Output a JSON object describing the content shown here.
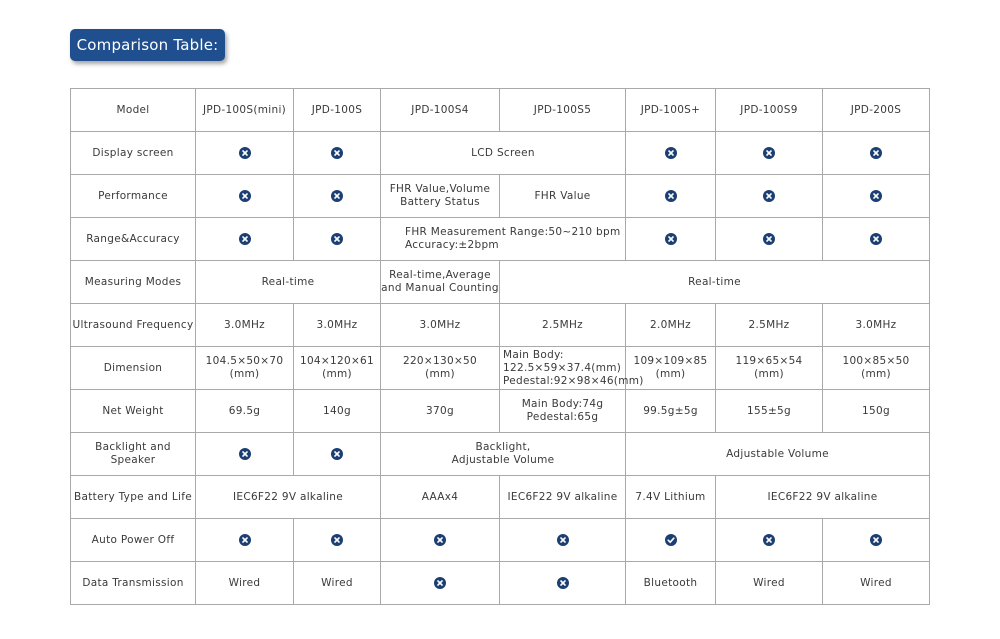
{
  "title": "Comparison Table:",
  "header": [
    "Model",
    "JPD-100S(mini)",
    "JPD-100S",
    "JPD-100S4",
    "JPD-100S5",
    "JPD-100S+",
    "JPD-100S9",
    "JPD-200S"
  ],
  "rows": [
    {
      "label": "Display screen",
      "texts": [
        "LCD Screen"
      ]
    },
    {
      "label": "Performance",
      "texts": [
        "FHR Value,Volume\nBattery Status",
        "FHR Value"
      ]
    },
    {
      "label": "Range&Accuracy",
      "texts": [
        "FHR Measurement Range:50~210 bpm\nAccuracy:±2bpm"
      ]
    },
    {
      "label": "Measuring Modes",
      "texts": [
        "Real-time",
        "Real-time,Average\nand Manual Counting",
        "Real-time"
      ]
    },
    {
      "label": "Ultrasound Frequency",
      "texts": [
        "3.0MHz",
        "3.0MHz",
        "3.0MHz",
        "2.5MHz",
        "2.0MHz",
        "2.5MHz",
        "3.0MHz"
      ]
    },
    {
      "label": "Dimension",
      "texts": [
        "104.5×50×70\n(mm)",
        "104×120×61\n(mm)",
        "220×130×50\n(mm)",
        "Main Body:\n122.5×59×37.4(mm)\nPedestal:92×98×46(mm)",
        "109×109×85\n(mm)",
        "119×65×54\n(mm)",
        "100×85×50\n(mm)"
      ]
    },
    {
      "label": "Net Weight",
      "texts": [
        "69.5g",
        "140g",
        "370g",
        "Main Body:74g\nPedestal:65g",
        "99.5g±5g",
        "155±5g",
        "150g"
      ]
    },
    {
      "label": "Backlight and Speaker",
      "texts": [
        "Backlight,\nAdjustable Volume",
        "Adjustable Volume"
      ]
    },
    {
      "label": "Battery Type and Life",
      "texts": [
        "IEC6F22 9V alkaline",
        "AAAx4",
        "IEC6F22 9V alkaline",
        "7.4V Lithium",
        "IEC6F22 9V alkaline"
      ]
    },
    {
      "label": "Auto Power Off",
      "texts": []
    },
    {
      "label": "Data Transmission",
      "texts": [
        "Wired",
        "Wired",
        "Bluetooth",
        "Wired",
        "Wired"
      ]
    }
  ]
}
